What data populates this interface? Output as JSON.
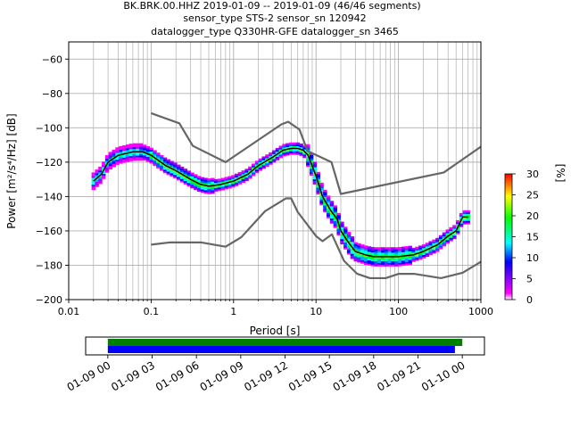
{
  "chart_data": [
    {
      "type": "heatmap",
      "title_lines": [
        "BK.BRK.00.HHZ   2019-01-09 -- 2019-01-09  (46/46 segments)",
        "sensor_type STS-2 sensor_sn 120942",
        "datalogger_type Q330HR-GFE datalogger_sn 3465"
      ],
      "xlabel": "Period [s]",
      "ylabel": "Power [m²/s⁴/Hz] [dB]",
      "xscale": "log",
      "xlim": [
        0.01,
        1000
      ],
      "ylim": [
        -200,
        -50
      ],
      "x_ticks": [
        0.01,
        0.1,
        1,
        10,
        100,
        1000
      ],
      "x_tick_labels": [
        "0.01",
        "0.1",
        "1",
        "10",
        "100",
        "1000"
      ],
      "y_ticks": [
        -200,
        -180,
        -160,
        -140,
        -120,
        -100,
        -80,
        -60
      ],
      "y_tick_labels": [
        "−200",
        "−180",
        "−160",
        "−140",
        "−120",
        "−100",
        "−80",
        "−60"
      ],
      "grid": true,
      "colorbar": {
        "label": "[%]",
        "min": 0,
        "max": 30,
        "ticks": [
          0,
          5,
          10,
          15,
          20,
          25,
          30
        ],
        "tick_labels": [
          "0",
          "5",
          "10",
          "15",
          "20",
          "25",
          "30"
        ]
      },
      "series": [
        {
          "role": "mode",
          "color": "#000000",
          "points": [
            [
              0.02,
              -131
            ],
            [
              0.025,
              -127
            ],
            [
              0.03,
              -120
            ],
            [
              0.04,
              -116
            ],
            [
              0.06,
              -114
            ],
            [
              0.08,
              -114
            ],
            [
              0.1,
              -116
            ],
            [
              0.15,
              -122
            ],
            [
              0.2,
              -125
            ],
            [
              0.3,
              -130
            ],
            [
              0.4,
              -133
            ],
            [
              0.5,
              -134
            ],
            [
              0.7,
              -133
            ],
            [
              1,
              -131
            ],
            [
              1.5,
              -127
            ],
            [
              2,
              -122
            ],
            [
              3,
              -117
            ],
            [
              4,
              -113
            ],
            [
              5,
              -112
            ],
            [
              6,
              -112
            ],
            [
              7,
              -113
            ],
            [
              8,
              -116
            ],
            [
              10,
              -128
            ],
            [
              12,
              -140
            ],
            [
              15,
              -148
            ],
            [
              18,
              -153
            ],
            [
              20,
              -160
            ],
            [
              25,
              -167
            ],
            [
              30,
              -172
            ],
            [
              40,
              -174
            ],
            [
              50,
              -175
            ],
            [
              70,
              -175
            ],
            [
              100,
              -175
            ],
            [
              150,
              -174
            ],
            [
              200,
              -172
            ],
            [
              300,
              -168
            ],
            [
              400,
              -163
            ],
            [
              500,
              -160
            ],
            [
              600,
              -152
            ],
            [
              700,
              -152
            ]
          ]
        },
        {
          "role": "high-noise-model",
          "color": "#666666",
          "points": [
            [
              0.1,
              -91.5
            ],
            [
              0.22,
              -97.4
            ],
            [
              0.32,
              -110.5
            ],
            [
              0.8,
              -120
            ],
            [
              3.8,
              -98
            ],
            [
              4.6,
              -96.5
            ],
            [
              6.3,
              -101
            ],
            [
              7.9,
              -113.5
            ],
            [
              15.4,
              -120
            ],
            [
              20,
              -138.5
            ],
            [
              354.8,
              -126
            ],
            [
              1000,
              -111
            ]
          ]
        },
        {
          "role": "low-noise-model",
          "color": "#666666",
          "points": [
            [
              0.1,
              -168
            ],
            [
              0.17,
              -166.7
            ],
            [
              0.4,
              -166.7
            ],
            [
              0.8,
              -169.2
            ],
            [
              1.24,
              -163.7
            ],
            [
              2.4,
              -148.6
            ],
            [
              4.3,
              -141.1
            ],
            [
              5,
              -141.1
            ],
            [
              6,
              -149
            ],
            [
              10,
              -163
            ],
            [
              12,
              -166
            ],
            [
              15.6,
              -162
            ],
            [
              21.9,
              -177.5
            ],
            [
              31.6,
              -185
            ],
            [
              45,
              -187.5
            ],
            [
              70,
              -187.5
            ],
            [
              101,
              -185
            ],
            [
              154,
              -185
            ],
            [
              328,
              -187.5
            ],
            [
              600,
              -184.4
            ],
            [
              1000,
              -178
            ]
          ]
        }
      ]
    },
    {
      "type": "timeline",
      "x_tick_labels": [
        "01-09 00",
        "01-09 03",
        "01-09 06",
        "01-09 09",
        "01-09 12",
        "01-09 15",
        "01-09 18",
        "01-09 21",
        "01-10 00"
      ],
      "xlim_hours": [
        -1.5,
        25.5
      ],
      "bars": [
        {
          "color": "#008000",
          "start_hour": 0,
          "end_hour": 24.0
        },
        {
          "color": "#0000ff",
          "start_hour": 0,
          "end_hour": 23.5
        }
      ]
    }
  ]
}
